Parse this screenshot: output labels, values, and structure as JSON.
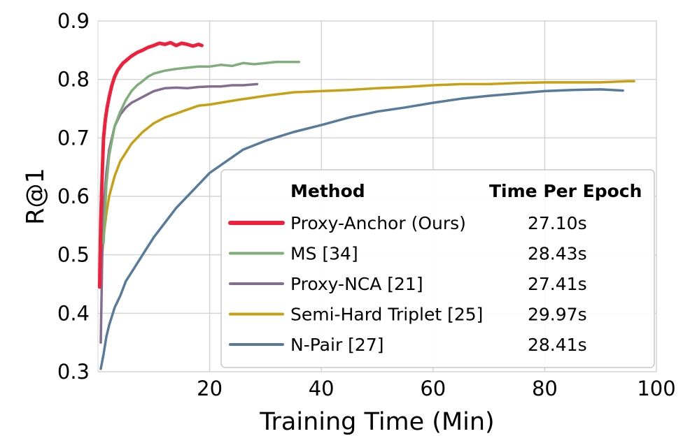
{
  "chart_data": {
    "type": "line",
    "title": "",
    "xlabel": "Training Time (Min)",
    "ylabel": "R@1",
    "xlim": [
      0,
      100
    ],
    "ylim": [
      0.3,
      0.9
    ],
    "xticks": [
      20,
      40,
      60,
      80,
      100
    ],
    "yticks": [
      0.3,
      0.4,
      0.5,
      0.6,
      0.7,
      0.8,
      0.9
    ],
    "xtick_labels": [
      "20",
      "40",
      "60",
      "80",
      "100"
    ],
    "ytick_labels": [
      "0.3",
      "0.4",
      "0.5",
      "0.6",
      "0.7",
      "0.8",
      "0.9"
    ],
    "grid": true,
    "legend_position": "lower-right",
    "legend_header": {
      "method": "Method",
      "time": "Time Per Epoch"
    },
    "series": [
      {
        "name": "Proxy-Anchor (Ours)",
        "time_per_epoch": "27.10s",
        "color": "#f0203c",
        "x": [
          0.3,
          0.5,
          0.8,
          1.0,
          1.3,
          1.6,
          2.0,
          2.5,
          3.0,
          3.5,
          4.0,
          4.5,
          5.0,
          5.5,
          6.0,
          7.0,
          8.0,
          9.0,
          10.0,
          11.0,
          12.0,
          13.0,
          14.0,
          15.0,
          16.0,
          17.0,
          18.0,
          18.6
        ],
        "y": [
          0.445,
          0.56,
          0.65,
          0.7,
          0.73,
          0.75,
          0.77,
          0.79,
          0.805,
          0.815,
          0.822,
          0.828,
          0.832,
          0.836,
          0.84,
          0.846,
          0.85,
          0.855,
          0.858,
          0.862,
          0.86,
          0.863,
          0.858,
          0.862,
          0.86,
          0.857,
          0.86,
          0.858
        ]
      },
      {
        "name": "MS [34]",
        "time_per_epoch": "28.43s",
        "color": "#7fae7a",
        "x": [
          1.0,
          1.5,
          2.0,
          3.0,
          4.0,
          5.0,
          6.0,
          7.0,
          8.0,
          9.0,
          10.0,
          12.0,
          14.0,
          16.0,
          18.0,
          20.0,
          22.0,
          24.0,
          26.0,
          28.0,
          30.0,
          32.0,
          34.0,
          36.0
        ],
        "y": [
          0.52,
          0.62,
          0.67,
          0.72,
          0.745,
          0.765,
          0.78,
          0.79,
          0.797,
          0.805,
          0.81,
          0.815,
          0.818,
          0.82,
          0.822,
          0.822,
          0.825,
          0.823,
          0.828,
          0.826,
          0.828,
          0.83,
          0.83,
          0.83
        ]
      },
      {
        "name": "Proxy-NCA [21]",
        "time_per_epoch": "27.41s",
        "color": "#836d91",
        "x": [
          0.5,
          0.8,
          1.0,
          1.5,
          2.0,
          3.0,
          4.0,
          5.0,
          6.0,
          7.0,
          8.0,
          9.0,
          10.0,
          12.0,
          14.0,
          16.0,
          18.0,
          20.0,
          22.0,
          24.0,
          26.0,
          28.5
        ],
        "y": [
          0.35,
          0.52,
          0.58,
          0.64,
          0.68,
          0.72,
          0.74,
          0.752,
          0.76,
          0.765,
          0.77,
          0.775,
          0.78,
          0.785,
          0.786,
          0.785,
          0.787,
          0.788,
          0.788,
          0.79,
          0.79,
          0.792
        ]
      },
      {
        "name": "Semi-Hard Triplet [25]",
        "time_per_epoch": "29.97s",
        "color": "#c7a013",
        "x": [
          0.5,
          1.0,
          1.5,
          2.0,
          3.0,
          4.0,
          5.0,
          6.0,
          7.0,
          8.0,
          10.0,
          12.0,
          15.0,
          18.0,
          20.0,
          25.0,
          30.0,
          35.0,
          40.0,
          45.0,
          50.0,
          55.0,
          60.0,
          65.0,
          70.0,
          75.0,
          80.0,
          85.0,
          90.0,
          95.0,
          96.0
        ],
        "y": [
          0.47,
          0.53,
          0.57,
          0.6,
          0.635,
          0.66,
          0.675,
          0.69,
          0.7,
          0.71,
          0.725,
          0.735,
          0.745,
          0.755,
          0.757,
          0.765,
          0.772,
          0.778,
          0.78,
          0.782,
          0.785,
          0.787,
          0.79,
          0.792,
          0.792,
          0.794,
          0.795,
          0.795,
          0.795,
          0.797,
          0.797
        ]
      },
      {
        "name": "N-Pair [27]",
        "time_per_epoch": "28.41s",
        "color": "#577b9a",
        "x": [
          0.5,
          1.0,
          1.5,
          2.0,
          3.0,
          4.0,
          5.0,
          6.0,
          7.0,
          8.0,
          9.0,
          10.0,
          12.0,
          14.0,
          16.0,
          18.0,
          20.0,
          23.0,
          26.0,
          30.0,
          35.0,
          40.0,
          45.0,
          50.0,
          55.0,
          60.0,
          65.0,
          70.0,
          75.0,
          80.0,
          85.0,
          90.0,
          94.0
        ],
        "y": [
          0.305,
          0.33,
          0.36,
          0.38,
          0.41,
          0.43,
          0.455,
          0.47,
          0.485,
          0.5,
          0.515,
          0.53,
          0.555,
          0.58,
          0.6,
          0.62,
          0.64,
          0.66,
          0.68,
          0.695,
          0.71,
          0.722,
          0.735,
          0.745,
          0.752,
          0.76,
          0.767,
          0.772,
          0.776,
          0.78,
          0.782,
          0.783,
          0.781
        ]
      }
    ]
  }
}
